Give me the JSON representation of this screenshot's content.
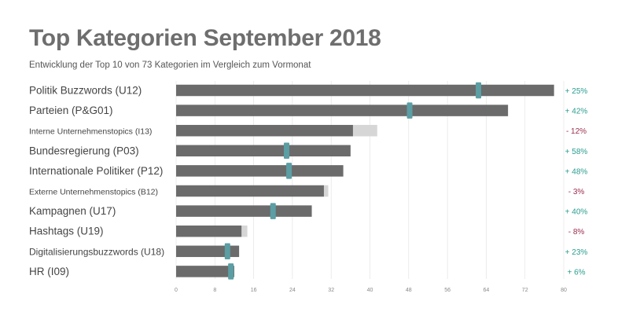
{
  "title": "Top Kategorien September 2018",
  "subtitle": "Entwicklung der Top 10 von 73 Kategorien im Vergleich zum Vormonat",
  "colors": {
    "bar": "#6b6b6b",
    "previous_overflow": "#d6d6d6",
    "marker": "#5b9ea4",
    "positive": "#2a9d8f",
    "negative": "#9b2e4e",
    "grid": "#e4e4e4"
  },
  "chart_data": {
    "type": "bar",
    "orientation": "horizontal",
    "title": "Top Kategorien September 2018",
    "subtitle": "Entwicklung der Top 10 von 73 Kategorien im Vergleich zum Vormonat",
    "xlim": [
      0,
      80
    ],
    "xticks": [
      0,
      8,
      16,
      24,
      32,
      40,
      48,
      56,
      64,
      72,
      80
    ],
    "grid": true,
    "categories": [
      "Politik Buzzwords (U12)",
      "Parteien (P&G01)",
      "Interne Unternehmenstopics (I13)",
      "Bundesregierung (P03)",
      "Internationale Politiker (P12)",
      "Externe Unternehmenstopics (B12)",
      "Kampagnen (U17)",
      "Hashtags (U19)",
      "Digitalisierungsbuzzwords (U18)",
      "HR (I09)"
    ],
    "label_size": [
      "large",
      "large",
      "small",
      "large",
      "large",
      "small",
      "large",
      "large",
      "medium",
      "large"
    ],
    "series": [
      {
        "values": [
          78,
          68.5,
          36.5,
          36,
          34.5,
          30.5,
          28,
          13.5,
          13,
          12
        ]
      },
      {
        "values": [
          62.4,
          48.2,
          41.5,
          22.8,
          23.3,
          31.4,
          20,
          14.7,
          10.6,
          11.3
        ]
      }
    ],
    "changes": [
      "+ 25%",
      "+ 42%",
      "- 12%",
      "+ 58%",
      "+ 48%",
      "- 3%",
      "+ 40%",
      "- 8%",
      "+ 23%",
      "+ 6%"
    ],
    "change_direction": [
      "up",
      "up",
      "down",
      "up",
      "up",
      "down",
      "up",
      "down",
      "up",
      "up"
    ]
  }
}
